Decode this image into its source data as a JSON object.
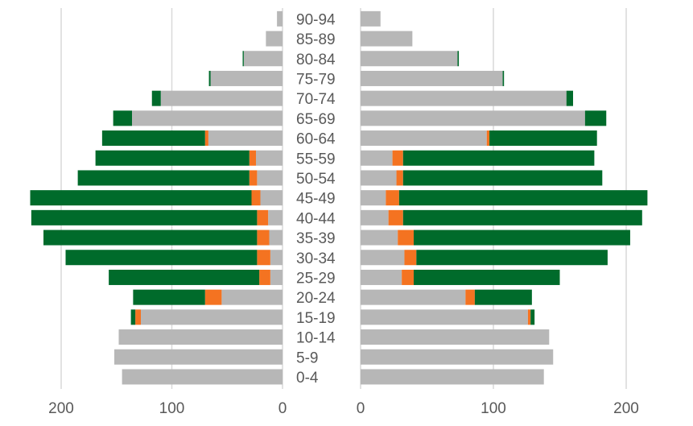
{
  "chart_data": {
    "type": "bar",
    "subtype": "population-pyramid-stacked-horizontal",
    "title": "",
    "categories": [
      "90-94",
      "85-89",
      "80-84",
      "75-79",
      "70-74",
      "65-69",
      "60-64",
      "55-59",
      "50-54",
      "45-49",
      "40-44",
      "35-39",
      "30-34",
      "25-29",
      "20-24",
      "15-19",
      "10-14",
      "5-9",
      "0-4"
    ],
    "left": {
      "xlim": [
        0,
        220
      ],
      "ticks": [
        200,
        100,
        0
      ],
      "series": [
        {
          "name": "gray",
          "color": "#b7b7b7",
          "values": [
            5,
            15,
            35,
            65,
            110,
            136,
            67,
            24,
            23,
            20,
            13,
            12,
            11,
            11,
            55,
            128,
            148,
            152,
            145
          ]
        },
        {
          "name": "orange",
          "color": "#f47321",
          "values": [
            0,
            0,
            0,
            0,
            0,
            0,
            3,
            6,
            7,
            8,
            10,
            11,
            12,
            10,
            15,
            5,
            0,
            0,
            0
          ]
        },
        {
          "name": "green",
          "color": "#006b2b",
          "values": [
            0,
            0,
            1,
            1.5,
            8,
            17,
            93,
            139,
            155,
            200,
            204,
            193,
            173,
            136,
            65,
            4,
            0,
            0,
            0
          ]
        }
      ]
    },
    "right": {
      "xlim": [
        0,
        220
      ],
      "ticks": [
        0,
        100,
        200
      ],
      "series": [
        {
          "name": "gray",
          "color": "#b7b7b7",
          "values": [
            15,
            39,
            73,
            107,
            155,
            169,
            95,
            24,
            27,
            19,
            21,
            28,
            33,
            31,
            79,
            126,
            142,
            145,
            138
          ]
        },
        {
          "name": "orange",
          "color": "#f47321",
          "values": [
            0,
            0,
            0,
            0,
            0,
            0,
            2,
            8,
            5,
            10,
            11,
            12,
            9,
            9,
            7,
            2,
            0,
            0,
            0
          ]
        },
        {
          "name": "green",
          "color": "#006b2b",
          "values": [
            0,
            0,
            1,
            1,
            5,
            16,
            81,
            144,
            150,
            187,
            180,
            163,
            144,
            110,
            43,
            3,
            0,
            0,
            0
          ]
        }
      ]
    },
    "legend": "none",
    "grid": true
  }
}
